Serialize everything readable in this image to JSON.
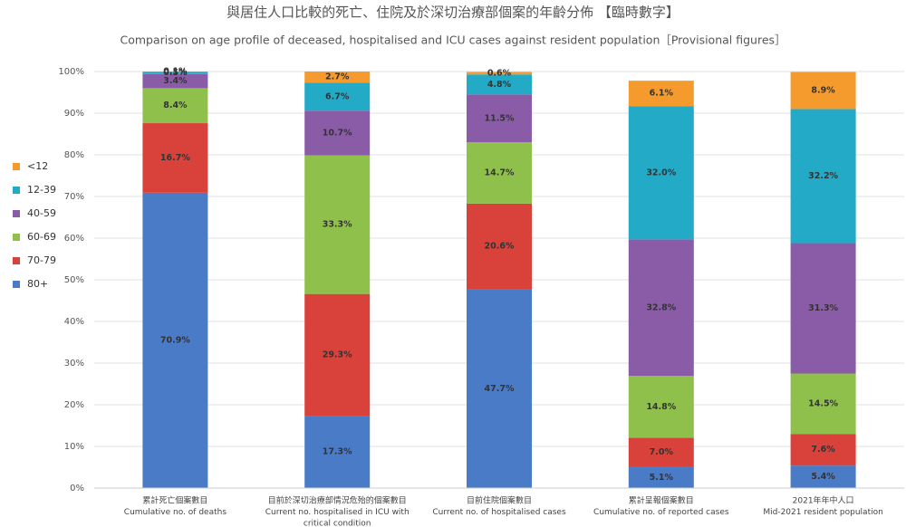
{
  "chart_data": {
    "type": "stacked_bar",
    "title": "與居住人口比較的死亡、住院及於深切治療部個案的年齡分佈 【臨時數字】",
    "subtitle": "Comparison on age profile of deceased, hospitalised and ICU cases against resident population［Provisional figures］",
    "categories": [
      [
        "累計死亡個案數目",
        "Cumulative no. of deaths"
      ],
      [
        "目前於深切治療部情況危殆的個案數目",
        "Current no. hospitalised in ICU with",
        "critical condition"
      ],
      [
        "目前住院個案數目",
        "Current no. of hospitalised cases"
      ],
      [
        "累計呈報個案數目",
        "Cumulative no. of reported cases"
      ],
      [
        "2021年年中人口",
        "Mid-2021 resident population"
      ]
    ],
    "series": [
      {
        "name": "80+",
        "color": "#4a7bc6",
        "values": [
          70.9,
          17.3,
          47.7,
          5.1,
          5.4
        ],
        "value_labels": [
          "70.9%",
          "17.3%",
          "47.7%",
          "5.1%",
          "5.4%"
        ]
      },
      {
        "name": "70-79",
        "color": "#d8423b",
        "values": [
          16.7,
          29.3,
          20.6,
          7,
          7.6
        ],
        "value_labels": [
          "16.7%",
          "29.3%",
          "20.6%",
          "7.0%",
          "7.6%"
        ]
      },
      {
        "name": "60-69",
        "color": "#8fc04c",
        "values": [
          8.4,
          33.3,
          14.7,
          14.8,
          14.5
        ],
        "value_labels": [
          "8.4%",
          "33.3%",
          "14.7%",
          "14.8%",
          "14.5%"
        ]
      },
      {
        "name": "40-59",
        "color": "#8a5ca8",
        "values": [
          3.4,
          10.7,
          11.5,
          32.8,
          31.3
        ],
        "value_labels": [
          "3.4%",
          "10.7%",
          "11.5%",
          "32.8%",
          "31.3%"
        ]
      },
      {
        "name": "12-39",
        "color": "#22aac6",
        "values": [
          0.5,
          6.7,
          4.8,
          32,
          32.2
        ],
        "value_labels": [
          "0.5%",
          "6.7%",
          "4.8%",
          "32.0%",
          "32.2%"
        ]
      },
      {
        "name": "<12",
        "color": "#f59b2d",
        "values": [
          0.1,
          2.7,
          0.6,
          6.1,
          8.9
        ],
        "value_labels": [
          "0.1%",
          "2.7%",
          "0.6%",
          "6.1%",
          "8.9%"
        ]
      }
    ],
    "ylim": [
      0,
      100
    ],
    "yticks": [
      {
        "value": 0,
        "label": "0%"
      },
      {
        "value": 10,
        "label": "10%"
      },
      {
        "value": 20,
        "label": "20%"
      },
      {
        "value": 30,
        "label": "30%"
      },
      {
        "value": 40,
        "label": "40%"
      },
      {
        "value": 50,
        "label": "50%"
      },
      {
        "value": 60,
        "label": "60%"
      },
      {
        "value": 70,
        "label": "70%"
      },
      {
        "value": 80,
        "label": "80%"
      },
      {
        "value": 90,
        "label": "90%"
      },
      {
        "value": 100,
        "label": "100%"
      }
    ],
    "grid": true,
    "legend": "left"
  }
}
